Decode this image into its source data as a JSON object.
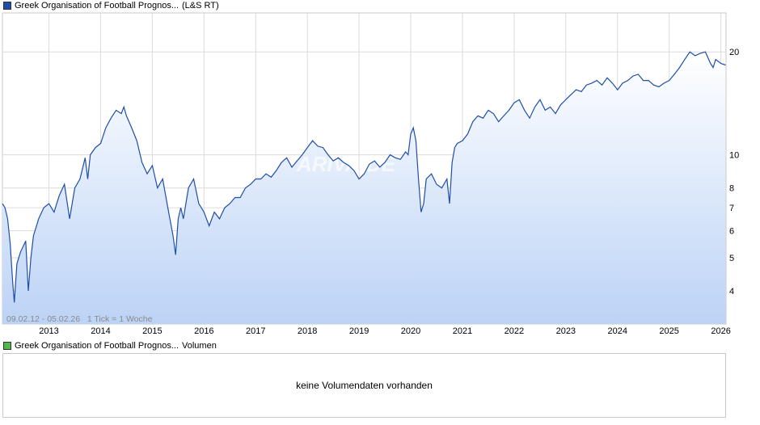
{
  "price_legend": {
    "label": "Greek Organisation of Football Prognos...",
    "source": "(L&S RT)",
    "color": "#1f4ea8"
  },
  "volume_legend": {
    "label": "Greek Organisation of Football Prognos...",
    "suffix": "Volumen",
    "color": "#4fb848"
  },
  "chart_data": {
    "type": "area",
    "title": "Greek Organisation of Football Prognos... (L&S RT)",
    "xlabel": "",
    "ylabel": "",
    "y_scale": "log",
    "ylim": [
      3.2,
      26
    ],
    "xlim": [
      2012.1,
      2026.1
    ],
    "y_ticks": [
      4,
      5,
      6,
      7,
      8,
      10,
      20
    ],
    "x_ticks": [
      {
        "value": 2013,
        "label": "2013"
      },
      {
        "value": 2014,
        "label": "2014"
      },
      {
        "value": 2015,
        "label": "2015"
      },
      {
        "value": 2016,
        "label": "2016"
      },
      {
        "value": 2017,
        "label": "2017"
      },
      {
        "value": 2018,
        "label": "2018"
      },
      {
        "value": 2019,
        "label": "2019"
      },
      {
        "value": 2020,
        "label": "2020"
      },
      {
        "value": 2021,
        "label": "2021"
      },
      {
        "value": 2022,
        "label": "2022"
      },
      {
        "value": 2023,
        "label": "2023"
      },
      {
        "value": 2024,
        "label": "2024"
      },
      {
        "value": 2025,
        "label": "2025"
      },
      {
        "value": 2026,
        "label": "2026"
      }
    ],
    "series": [
      {
        "name": "Greek Organisation of Football Prognos...",
        "color": "#1f4ea8",
        "x": [
          2012.1,
          2012.15,
          2012.2,
          2012.25,
          2012.3,
          2012.33,
          2012.38,
          2012.45,
          2012.55,
          2012.6,
          2012.65,
          2012.7,
          2012.8,
          2012.9,
          2013.0,
          2013.1,
          2013.2,
          2013.3,
          2013.4,
          2013.5,
          2013.6,
          2013.7,
          2013.75,
          2013.8,
          2013.9,
          2014.0,
          2014.1,
          2014.2,
          2014.3,
          2014.4,
          2014.45,
          2014.5,
          2014.6,
          2014.7,
          2014.8,
          2014.9,
          2015.0,
          2015.1,
          2015.2,
          2015.3,
          2015.4,
          2015.45,
          2015.5,
          2015.55,
          2015.6,
          2015.7,
          2015.8,
          2015.9,
          2016.0,
          2016.1,
          2016.2,
          2016.3,
          2016.4,
          2016.5,
          2016.6,
          2016.7,
          2016.8,
          2016.9,
          2017.0,
          2017.1,
          2017.2,
          2017.3,
          2017.4,
          2017.5,
          2017.6,
          2017.7,
          2017.8,
          2017.9,
          2018.0,
          2018.1,
          2018.2,
          2018.3,
          2018.4,
          2018.5,
          2018.6,
          2018.7,
          2018.8,
          2018.9,
          2019.0,
          2019.1,
          2019.2,
          2019.3,
          2019.4,
          2019.5,
          2019.6,
          2019.7,
          2019.8,
          2019.9,
          2019.95,
          2020.0,
          2020.05,
          2020.1,
          2020.15,
          2020.2,
          2020.25,
          2020.3,
          2020.4,
          2020.5,
          2020.6,
          2020.7,
          2020.75,
          2020.8,
          2020.85,
          2020.9,
          2021.0,
          2021.1,
          2021.2,
          2021.3,
          2021.4,
          2021.5,
          2021.6,
          2021.7,
          2021.8,
          2021.9,
          2022.0,
          2022.1,
          2022.2,
          2022.3,
          2022.4,
          2022.5,
          2022.6,
          2022.7,
          2022.8,
          2022.9,
          2023.0,
          2023.1,
          2023.2,
          2023.3,
          2023.4,
          2023.5,
          2023.6,
          2023.7,
          2023.8,
          2023.9,
          2024.0,
          2024.1,
          2024.2,
          2024.3,
          2024.4,
          2024.5,
          2024.6,
          2024.7,
          2024.8,
          2024.9,
          2025.0,
          2025.1,
          2025.2,
          2025.3,
          2025.4,
          2025.5,
          2025.6,
          2025.7,
          2025.8,
          2025.85,
          2025.9,
          2026.0,
          2026.09
        ],
        "values": [
          7.2,
          7.0,
          6.5,
          5.5,
          4.2,
          3.7,
          4.8,
          5.2,
          5.6,
          4.0,
          5.0,
          5.8,
          6.5,
          7.0,
          7.2,
          6.8,
          7.6,
          8.2,
          6.5,
          8.0,
          8.5,
          9.8,
          8.5,
          10.0,
          10.5,
          10.8,
          12.0,
          12.8,
          13.5,
          13.2,
          13.8,
          13.0,
          12.0,
          11.0,
          9.5,
          8.8,
          9.3,
          8.0,
          8.5,
          7.0,
          5.8,
          5.1,
          6.5,
          7.0,
          6.5,
          8.0,
          8.5,
          7.2,
          6.8,
          6.2,
          6.8,
          6.5,
          7.0,
          7.2,
          7.5,
          7.5,
          8.0,
          8.2,
          8.5,
          8.5,
          8.8,
          8.6,
          9.0,
          9.5,
          9.8,
          9.2,
          9.6,
          10.0,
          10.5,
          11.0,
          10.6,
          10.5,
          10.0,
          9.6,
          9.8,
          9.5,
          9.3,
          9.0,
          8.5,
          8.8,
          9.4,
          9.6,
          9.2,
          9.5,
          10.0,
          9.8,
          9.7,
          10.2,
          10.0,
          11.5,
          12.0,
          11.0,
          8.5,
          6.8,
          7.2,
          8.5,
          8.8,
          8.2,
          8.0,
          8.5,
          7.2,
          9.5,
          10.5,
          10.8,
          11.0,
          11.5,
          12.5,
          13.0,
          12.8,
          13.5,
          13.2,
          12.5,
          13.0,
          13.5,
          14.2,
          14.5,
          13.5,
          12.8,
          13.8,
          14.5,
          13.5,
          13.8,
          13.2,
          14.0,
          14.5,
          15.0,
          15.5,
          15.3,
          16.0,
          16.2,
          16.5,
          16.0,
          16.8,
          16.2,
          15.5,
          16.2,
          16.5,
          17.0,
          17.2,
          16.5,
          16.5,
          16.0,
          15.8,
          16.2,
          16.5,
          17.2,
          18.0,
          19.0,
          20.0,
          19.5,
          19.8,
          20.0,
          18.5,
          18.0,
          19.0,
          18.5,
          18.3
        ]
      }
    ],
    "annotation": "09.02.12 - 05.02.26   1 Tick = 1 Woche",
    "watermark": "ARIVA.DE"
  },
  "volume_chart": {
    "message": "keine Volumendaten vorhanden"
  }
}
